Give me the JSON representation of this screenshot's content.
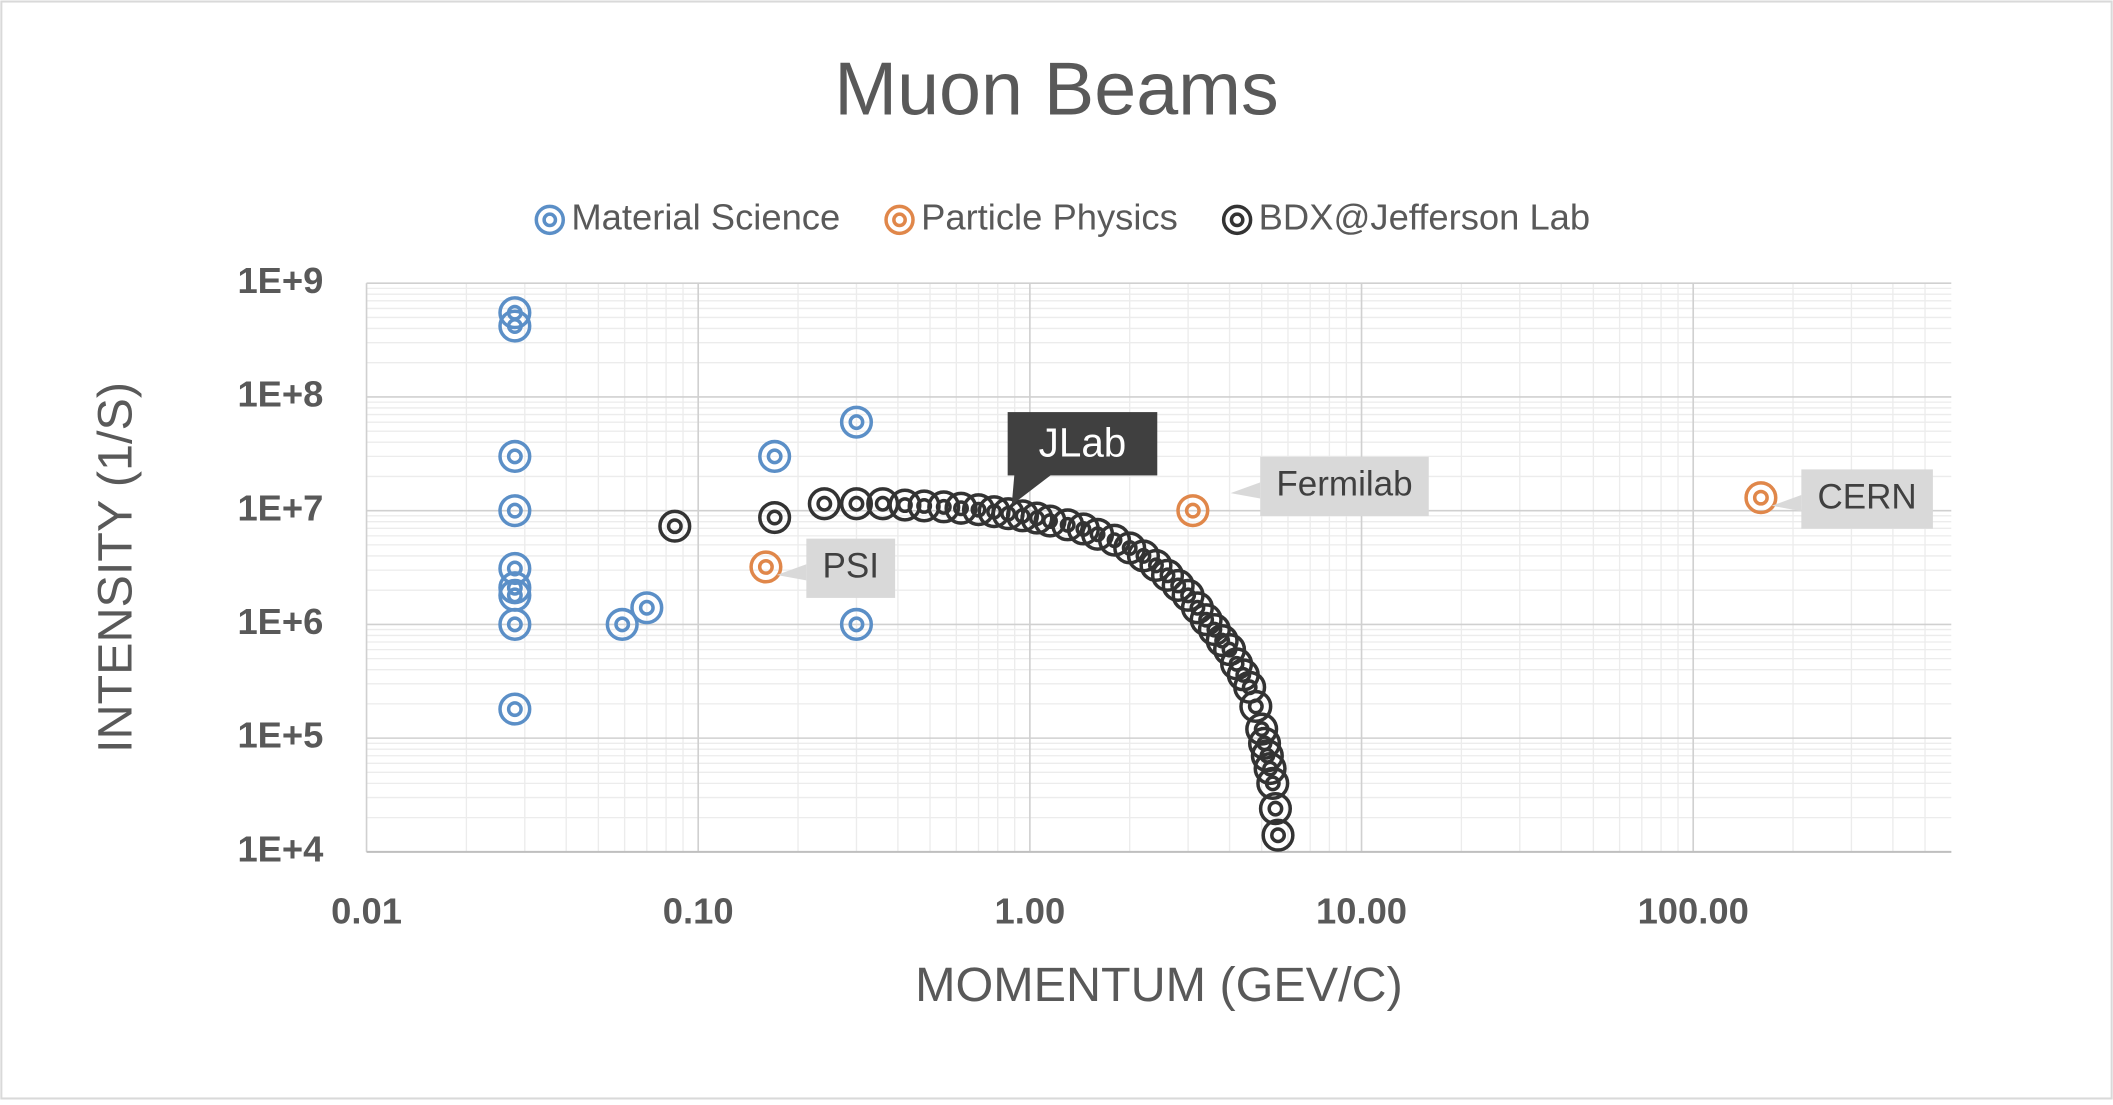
{
  "chart_data": {
    "type": "scatter",
    "title": "Muon Beams",
    "x_label": "MOMENTUM (GEV/C)",
    "y_label": "INTENSITY (1/S)",
    "xscale": "log",
    "yscale": "log",
    "grid": true,
    "legend": "top",
    "xlim": [
      0.01,
      600
    ],
    "ylim": [
      10000,
      1000000000
    ],
    "xticks": [
      {
        "value": 0.01,
        "label": "0.01"
      },
      {
        "value": 0.1,
        "label": "0.10"
      },
      {
        "value": 1,
        "label": "1.00"
      },
      {
        "value": 10,
        "label": "10.00"
      },
      {
        "value": 100,
        "label": "100.00"
      }
    ],
    "yticks": [
      {
        "value": 10000,
        "label": "1E+4"
      },
      {
        "value": 100000,
        "label": "1E+5"
      },
      {
        "value": 1000000,
        "label": "1E+6"
      },
      {
        "value": 10000000,
        "label": "1E+7"
      },
      {
        "value": 100000000,
        "label": "1E+8"
      },
      {
        "value": 1000000000,
        "label": "1E+9"
      }
    ],
    "series": [
      {
        "name": "Material Science",
        "color": "#5b8fc7",
        "x": [
          0.028,
          0.028,
          0.028,
          0.028,
          0.028,
          0.028,
          0.028,
          0.028,
          0.028,
          0.059,
          0.07,
          0.17,
          0.3,
          0.3
        ],
        "values": [
          550000000,
          420000000,
          30000000,
          10000000,
          3100000,
          2100000,
          1800000,
          1000000,
          180000,
          1000000,
          1400000,
          30000000,
          60000000,
          1000000
        ]
      },
      {
        "name": "Particle Physics",
        "color": "#e0874a",
        "x": [
          0.16,
          3.1,
          160
        ],
        "values": [
          3200000,
          10000000,
          13000000
        ],
        "point_labels": [
          "PSI",
          "Fermilab",
          "CERN"
        ]
      },
      {
        "name": "BDX@Jefferson Lab",
        "color": "#333333",
        "x": [
          0.085,
          0.17,
          0.24,
          0.3,
          0.36,
          0.42,
          0.48,
          0.55,
          0.62,
          0.7,
          0.78,
          0.86,
          0.95,
          1.05,
          1.15,
          1.3,
          1.45,
          1.6,
          1.8,
          2.0,
          2.2,
          2.4,
          2.6,
          2.8,
          3.0,
          3.2,
          3.4,
          3.6,
          3.8,
          4.0,
          4.2,
          4.4,
          4.6,
          4.8,
          5.0,
          5.1,
          5.2,
          5.3,
          5.4,
          5.5,
          5.6
        ],
        "values": [
          7300000,
          8700000,
          11500000,
          11500000,
          11500000,
          11200000,
          11000000,
          10800000,
          10500000,
          10200000,
          9800000,
          9400000,
          9000000,
          8600000,
          8100000,
          7500000,
          6900000,
          6200000,
          5500000,
          4700000,
          4000000,
          3300000,
          2700000,
          2200000,
          1800000,
          1400000,
          1100000,
          900000,
          720000,
          600000,
          450000,
          360000,
          280000,
          190000,
          120000,
          90000,
          70000,
          54000,
          40000,
          24000,
          14000
        ],
        "annotation": "JLab"
      }
    ]
  }
}
